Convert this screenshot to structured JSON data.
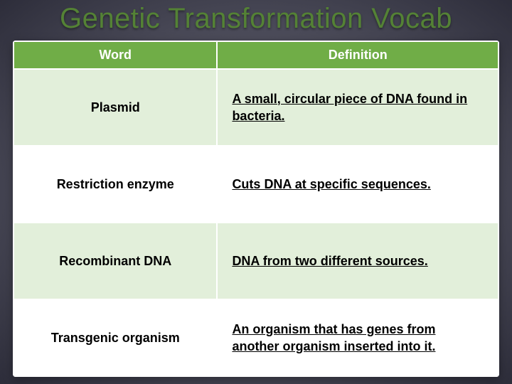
{
  "title": "Genetic Transformation Vocab",
  "table": {
    "columns": [
      "Word",
      "Definition"
    ],
    "col_widths_pct": [
      42,
      58
    ],
    "header_bg": "#70ad47",
    "header_fg": "#ffffff",
    "band_colors": [
      "#e2efda",
      "#ffffff"
    ],
    "border_color": "#ffffff",
    "font_size_pt": 14,
    "title_color": "#548235",
    "title_fontsize_pt": 30,
    "rows": [
      {
        "word": "Plasmid",
        "definition": "A small, circular piece of DNA found in bacteria."
      },
      {
        "word": "Restriction enzyme",
        "definition": "Cuts DNA at specific sequences."
      },
      {
        "word": "Recombinant DNA",
        "definition": "DNA from two different sources."
      },
      {
        "word": "Transgenic organism",
        "definition": "An organism that has genes from another organism inserted into it."
      }
    ]
  },
  "background": {
    "gradient_center": "#6d6d7a",
    "gradient_mid": "#4a4a58",
    "gradient_edge": "#2d2d3a"
  }
}
